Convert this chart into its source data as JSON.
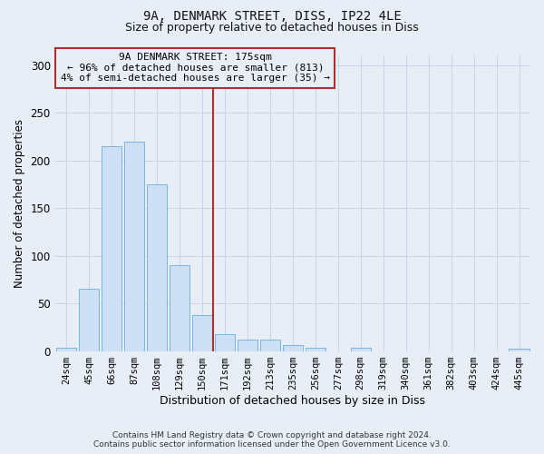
{
  "title": "9A, DENMARK STREET, DISS, IP22 4LE",
  "subtitle": "Size of property relative to detached houses in Diss",
  "xlabel": "Distribution of detached houses by size in Diss",
  "ylabel": "Number of detached properties",
  "footnote1": "Contains HM Land Registry data © Crown copyright and database right 2024.",
  "footnote2": "Contains public sector information licensed under the Open Government Licence v3.0.",
  "bar_labels": [
    "24sqm",
    "45sqm",
    "66sqm",
    "87sqm",
    "108sqm",
    "129sqm",
    "150sqm",
    "171sqm",
    "192sqm",
    "213sqm",
    "235sqm",
    "256sqm",
    "277sqm",
    "298sqm",
    "319sqm",
    "340sqm",
    "361sqm",
    "382sqm",
    "403sqm",
    "424sqm",
    "445sqm"
  ],
  "bar_values": [
    3,
    65,
    215,
    220,
    175,
    90,
    38,
    18,
    12,
    12,
    6,
    3,
    0,
    3,
    0,
    0,
    0,
    0,
    0,
    0,
    2
  ],
  "bar_color": "#ccdff5",
  "bar_edge_color": "#6aaee0",
  "grid_color": "#c8d4e8",
  "bg_color": "#e8eef6",
  "vline_color": "#b03030",
  "annotation_text": "9A DENMARK STREET: 175sqm\n← 96% of detached houses are smaller (813)\n4% of semi-detached houses are larger (35) →",
  "annotation_box_edgecolor": "#b03030",
  "ylim": [
    0,
    310
  ],
  "yticks": [
    0,
    50,
    100,
    150,
    200,
    250,
    300
  ],
  "vline_bar_index": 7
}
